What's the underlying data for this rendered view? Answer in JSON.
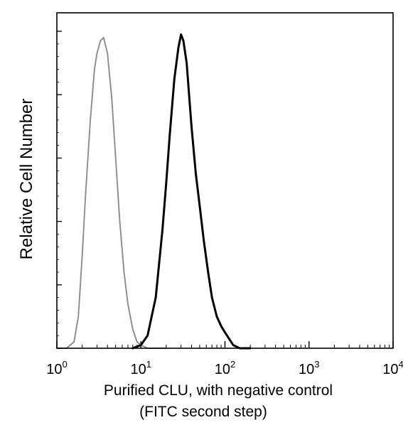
{
  "chart_data": {
    "type": "line",
    "title": "",
    "xlabel": "Purified CLU, with negative control",
    "xlabel_line2": "(FITC second step)",
    "ylabel": "Relative Cell Number",
    "x_scale": "log",
    "xlim": [
      1,
      10000
    ],
    "ylim": [
      0,
      1
    ],
    "grid": false,
    "legend": "none",
    "x_ticks": [
      {
        "value": 1,
        "base": "10",
        "exp": "0"
      },
      {
        "value": 10,
        "base": "10",
        "exp": "1"
      },
      {
        "value": 100,
        "base": "10",
        "exp": "2"
      },
      {
        "value": 1000,
        "base": "10",
        "exp": "3"
      },
      {
        "value": 10000,
        "base": "10",
        "exp": "4"
      }
    ],
    "series": [
      {
        "style": "dotted-grey",
        "color": "#8a8a8a",
        "x": [
          1.0,
          1.3,
          1.6,
          1.8,
          2.0,
          2.2,
          2.5,
          2.8,
          3.0,
          3.3,
          3.6,
          4.0,
          4.5,
          5.0,
          5.6,
          6.3,
          7.0,
          8.0,
          9.0,
          10.0,
          12.0,
          15.0,
          20.0
        ],
        "y": [
          0.0,
          0.0,
          0.02,
          0.1,
          0.29,
          0.49,
          0.72,
          0.88,
          0.93,
          0.97,
          0.98,
          0.93,
          0.79,
          0.6,
          0.4,
          0.24,
          0.14,
          0.06,
          0.02,
          0.01,
          0.0,
          0.0,
          0.0
        ]
      },
      {
        "style": "solid-black",
        "color": "#000000",
        "x": [
          8.0,
          10.0,
          12.0,
          15.0,
          18.0,
          20.0,
          22.0,
          25.0,
          28.0,
          30.0,
          32.0,
          35.0,
          40.0,
          45.0,
          50.0,
          56.0,
          63.0,
          70.0,
          80.0,
          90.0,
          100.0,
          112.0,
          125.0,
          150.0,
          200.0
        ],
        "y": [
          0.0,
          0.01,
          0.04,
          0.16,
          0.37,
          0.52,
          0.67,
          0.85,
          0.95,
          0.99,
          0.97,
          0.9,
          0.7,
          0.55,
          0.45,
          0.34,
          0.24,
          0.16,
          0.1,
          0.07,
          0.05,
          0.03,
          0.01,
          0.0,
          0.0
        ]
      }
    ]
  }
}
